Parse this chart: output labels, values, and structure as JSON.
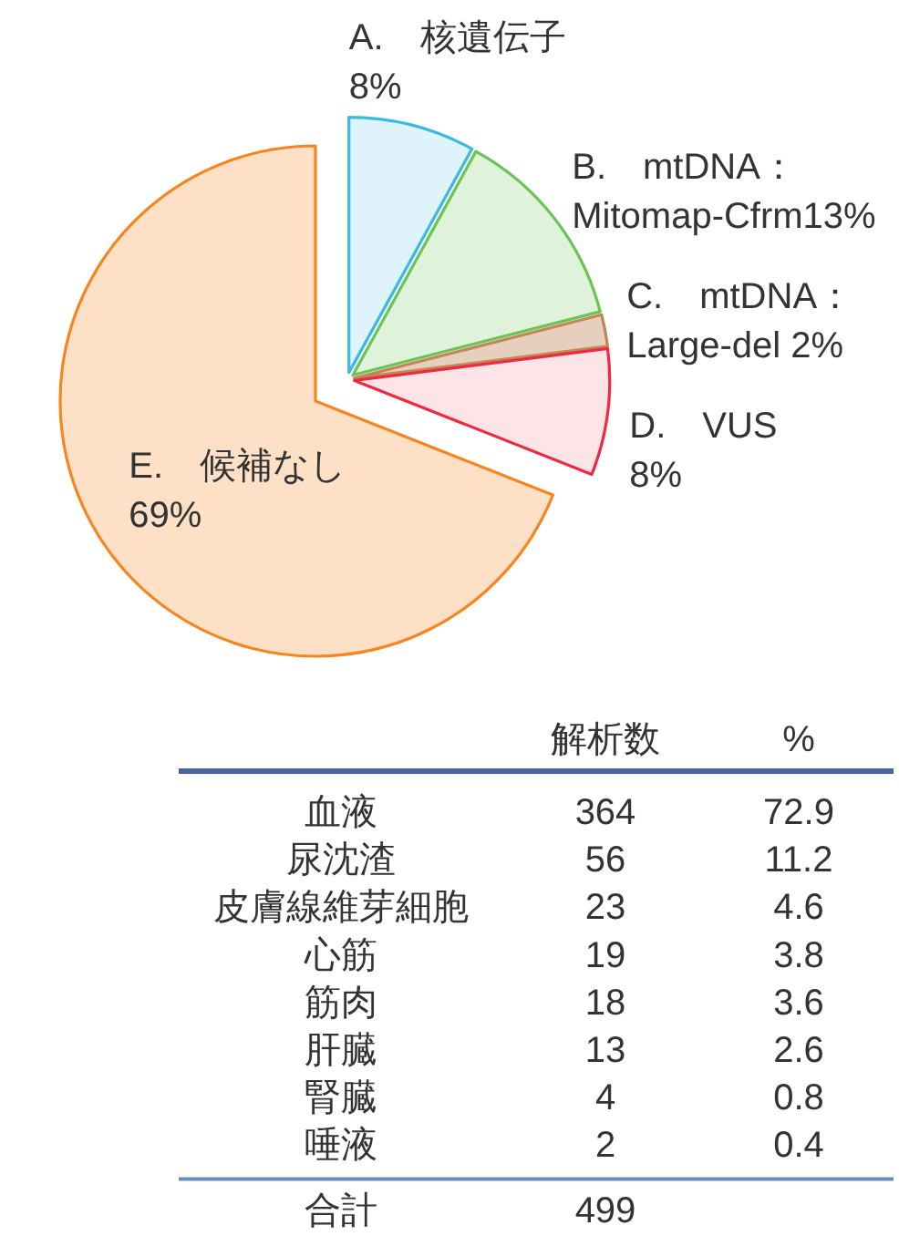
{
  "chart_data": [
    {
      "type": "pie",
      "categories": [
        "A.　核遺伝子",
        "B.　mtDNA：\nMitomap-Cfrm",
        "C.　mtDNA：\nLarge-del ",
        "D.　VUS",
        "E.　候補なし"
      ],
      "values": [
        8,
        13,
        2,
        8,
        69
      ],
      "value_labels": [
        "8%",
        "13%",
        "2%",
        "8%",
        "69%"
      ],
      "colors": [
        "#dff4fa",
        "#dff2da",
        "#e6cfbc",
        "#fde4e7",
        "#fde0c6"
      ]
    },
    {
      "type": "other",
      "categories": [
        "血液",
        "尿沈渣",
        "皮膚線維芽細胞",
        "心筋",
        "筋肉",
        "肝臓",
        "腎臓",
        "唾液"
      ],
      "series": [
        {
          "name": "解析数",
          "values": [
            364,
            56,
            23,
            19,
            18,
            13,
            4,
            2
          ]
        },
        {
          "name": "%",
          "values": [
            72.9,
            11.2,
            4.6,
            3.8,
            3.6,
            2.6,
            0.8,
            0.4
          ]
        }
      ],
      "data_labels": true,
      "annotations": [
        "合計",
        "499"
      ]
    }
  ]
}
